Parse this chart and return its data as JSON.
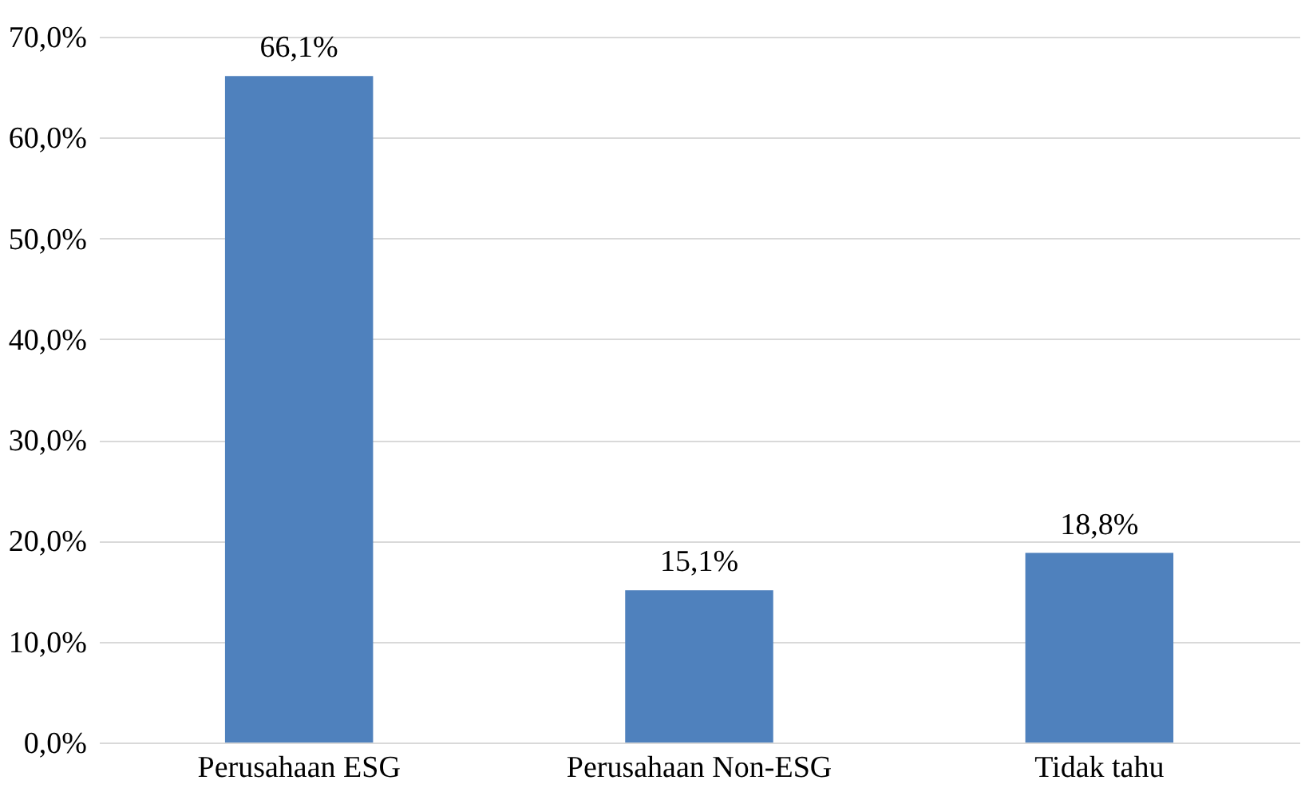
{
  "chart_data": {
    "type": "bar",
    "categories": [
      "Perusahaan ESG",
      "Perusahaan Non-ESG",
      "Tidak tahu"
    ],
    "values": [
      66.1,
      15.1,
      18.8
    ],
    "value_labels": [
      "66,1%",
      "15,1%",
      "18,8%"
    ],
    "color": "#4f81bd",
    "ylim": [
      0,
      70
    ],
    "yticks": [
      {
        "value": 0,
        "label": "0,0%"
      },
      {
        "value": 10,
        "label": "10,0%"
      },
      {
        "value": 20,
        "label": "20,0%"
      },
      {
        "value": 30,
        "label": "30,0%"
      },
      {
        "value": 40,
        "label": "40,0%"
      },
      {
        "value": 50,
        "label": "50,0%"
      },
      {
        "value": 60,
        "label": "60,0%"
      },
      {
        "value": 70,
        "label": "70,0%"
      }
    ],
    "grid": "y"
  }
}
